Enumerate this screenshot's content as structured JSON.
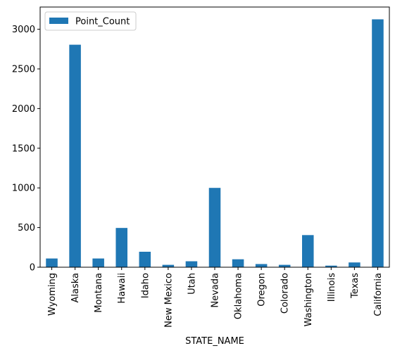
{
  "chart_data": {
    "type": "bar",
    "categories": [
      "Wyoming",
      "Alaska",
      "Montana",
      "Hawaii",
      "Idaho",
      "New Mexico",
      "Utah",
      "Nevada",
      "Oklahoma",
      "Oregon",
      "Colorado",
      "Washington",
      "Illinois",
      "Texas",
      "California"
    ],
    "series": [
      {
        "name": "Point_Count",
        "values": [
          110,
          2805,
          110,
          495,
          195,
          30,
          75,
          1000,
          100,
          40,
          30,
          405,
          20,
          60,
          3125
        ],
        "color": "#1f77b4"
      }
    ],
    "xlabel": "STATE_NAME",
    "ylabel": "",
    "ylim": [
      0,
      3280
    ],
    "yticks": [
      0,
      500,
      1000,
      1500,
      2000,
      2500,
      3000
    ],
    "legend": {
      "placement": "top-left",
      "entries": [
        "Point_Count"
      ]
    },
    "grid": false
  }
}
